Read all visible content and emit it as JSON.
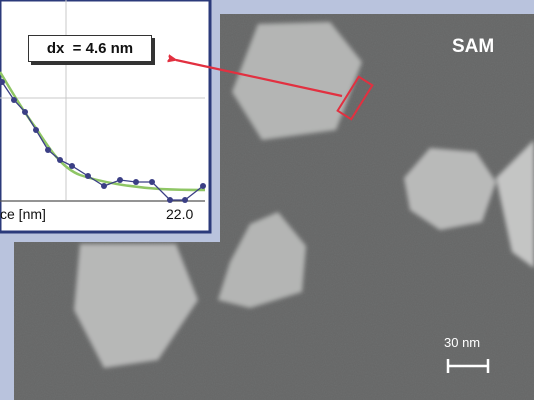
{
  "image_label": "SAM",
  "measurement": {
    "text": "dx  = 4.6 nm"
  },
  "scale_bar": {
    "label": "30 nm"
  },
  "inset_plot": {
    "xlabel_fragment": "ce [nm]",
    "x_tick_end": "22.0"
  },
  "colors": {
    "background": "#b9c3dd",
    "micrograph": "#6e6f6f",
    "particles": "#b5b6b5",
    "arrow": "#e23040",
    "fit_curve": "#8fc665",
    "data_line": "#3b3f85"
  }
}
